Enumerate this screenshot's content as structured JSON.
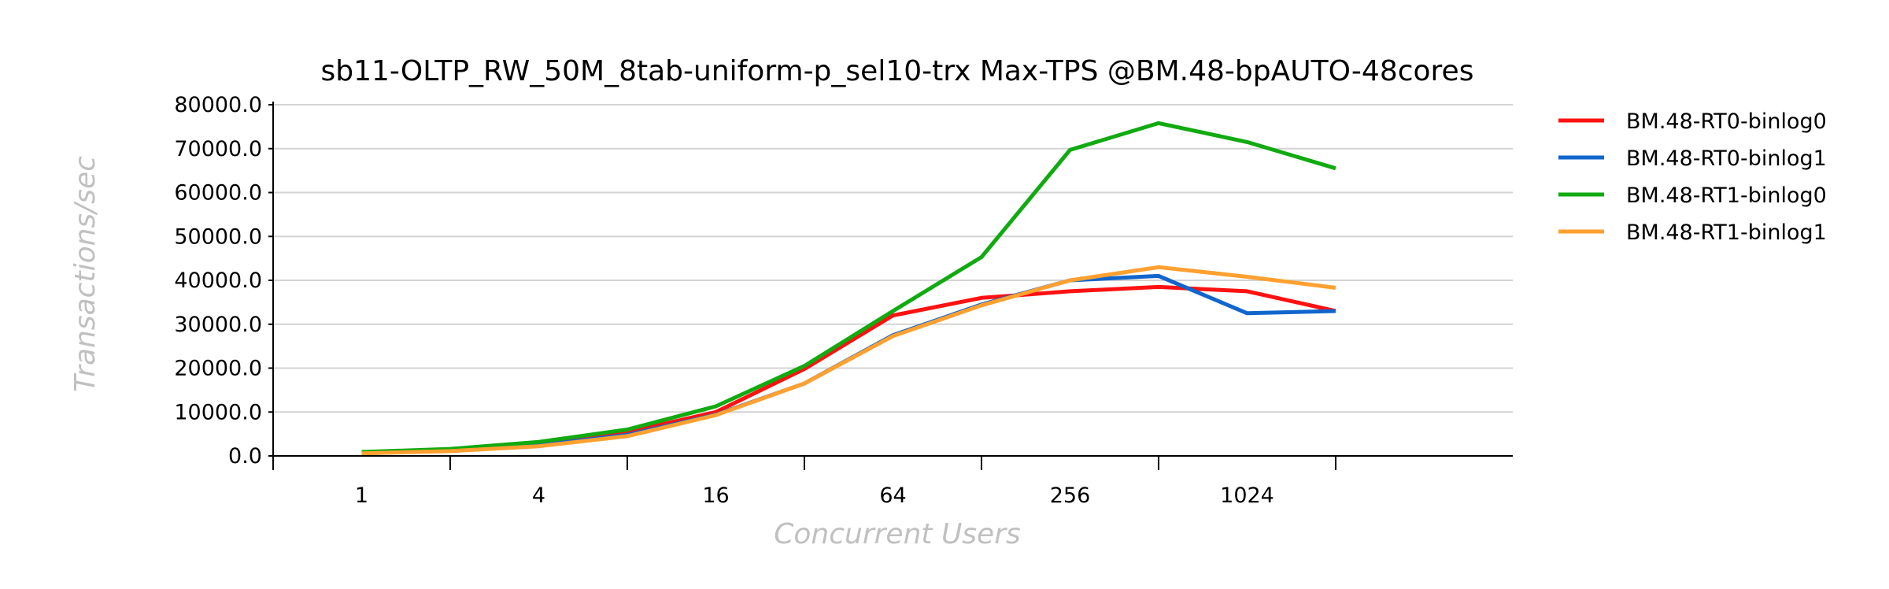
{
  "chart_data": {
    "type": "line",
    "title": "sb11-OLTP_RW_50M_8tab-uniform-p_sel10-trx Max-TPS @BM.48-bpAUTO-48cores",
    "xlabel": "Concurrent Users",
    "ylabel": "Transactions/sec",
    "x_scale": "log2",
    "x": [
      1,
      2,
      4,
      8,
      16,
      32,
      64,
      128,
      256,
      512,
      1024,
      2048
    ],
    "x_tick_labels": [
      "1",
      "4",
      "16",
      "64",
      "256",
      "1024"
    ],
    "x_tick_label_values": [
      1,
      4,
      16,
      64,
      256,
      1024
    ],
    "x_tick_marks": [
      0.5,
      2,
      8,
      32,
      128,
      512,
      2048
    ],
    "xlim": [
      0.5,
      8192
    ],
    "ylim": [
      0,
      80000
    ],
    "y_ticks": [
      0,
      10000,
      20000,
      30000,
      40000,
      50000,
      60000,
      70000,
      80000
    ],
    "y_tick_labels": [
      "0.0",
      "10000.0",
      "20000.0",
      "30000.0",
      "40000.0",
      "50000.0",
      "60000.0",
      "70000.0",
      "80000.0"
    ],
    "grid": "horizontal",
    "legend_position": "right",
    "series": [
      {
        "name": "BM.48-RT0-binlog0",
        "color": "#ff1111",
        "values": [
          800,
          1500,
          2800,
          5400,
          10000,
          19800,
          32000,
          36000,
          37500,
          38500,
          37500,
          33000
        ]
      },
      {
        "name": "BM.48-RT0-binlog1",
        "color": "#1166cc",
        "values": [
          600,
          1200,
          2400,
          4800,
          9400,
          16500,
          27500,
          34500,
          40000,
          41000,
          32500,
          33000
        ]
      },
      {
        "name": "BM.48-RT1-binlog0",
        "color": "#11aa11",
        "values": [
          900,
          1600,
          3200,
          6000,
          11300,
          20500,
          33000,
          45300,
          69700,
          75800,
          71500,
          65500
        ]
      },
      {
        "name": "BM.48-RT1-binlog1",
        "color": "#ffa030",
        "values": [
          600,
          1100,
          2200,
          4500,
          9300,
          16500,
          27300,
          34300,
          40000,
          43000,
          40800,
          38300
        ]
      }
    ]
  }
}
